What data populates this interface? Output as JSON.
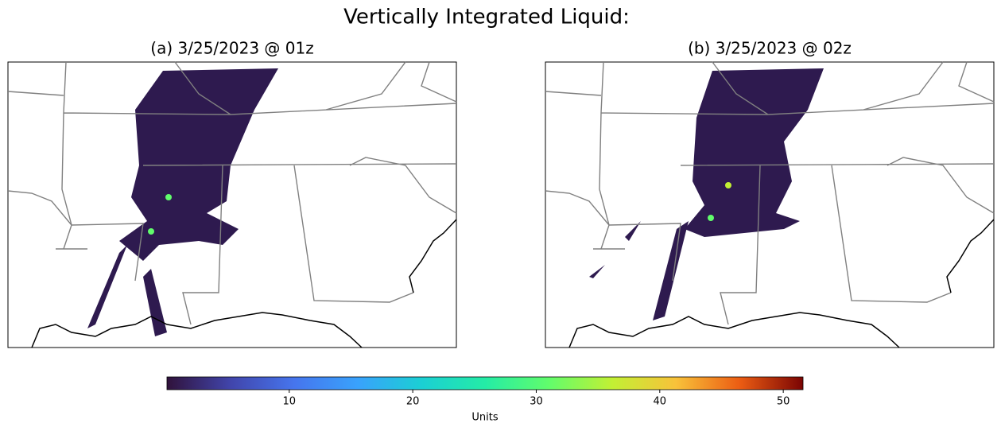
{
  "title": "Vertically Integrated Liquid:",
  "panels": [
    {
      "title": "(a) 3/25/2023 @ 01z"
    },
    {
      "title": "(b) 3/25/2023 @ 02z"
    }
  ],
  "colorbar": {
    "label": "Units",
    "lim": [
      0.1,
      51.6
    ],
    "ticks": [
      10,
      20,
      30,
      40,
      50
    ]
  }
}
